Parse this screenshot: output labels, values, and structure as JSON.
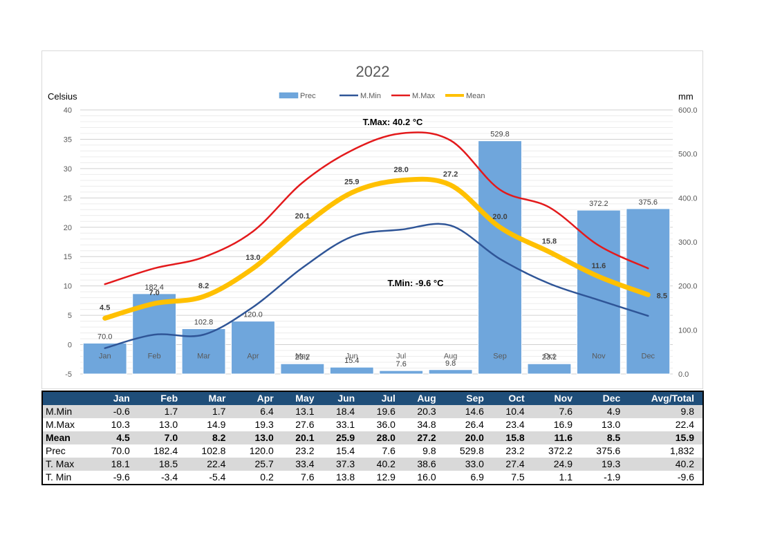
{
  "chart_data": {
    "type": "bar",
    "title": "2022",
    "y_left_label": "Celsius",
    "y_right_label": "mm",
    "y_left_range": [
      -5,
      40
    ],
    "y_left_ticks": [
      "-5",
      "0",
      "5",
      "10",
      "15",
      "20",
      "25",
      "30",
      "35",
      "40"
    ],
    "y_right_range": [
      0,
      600
    ],
    "y_right_ticks": [
      "0.0",
      "100.0",
      "200.0",
      "300.0",
      "400.0",
      "500.0",
      "600.0"
    ],
    "grid": true,
    "legend_position": "top",
    "categories": [
      "Jan",
      "Feb",
      "Mar",
      "Apr",
      "May",
      "Jun",
      "Jul",
      "Aug",
      "Sep",
      "Oct",
      "Nov",
      "Dec"
    ],
    "series": [
      {
        "name": "Prec",
        "type": "bar",
        "axis": "right",
        "color": "#6fa6dc",
        "values": [
          70.0,
          182.4,
          102.8,
          120.0,
          23.2,
          15.4,
          7.6,
          9.8,
          529.8,
          23.2,
          372.2,
          375.6
        ],
        "labels": [
          "70.0",
          "182.4",
          "102.8",
          "120.0",
          "23.2",
          "15.4",
          "7.6",
          "9.8",
          "529.8",
          "23.2",
          "372.2",
          "375.6"
        ]
      },
      {
        "name": "M.Min",
        "type": "line",
        "axis": "left",
        "color": "#2f5597",
        "values": [
          -0.6,
          1.7,
          1.7,
          6.4,
          13.1,
          18.4,
          19.6,
          20.3,
          14.6,
          10.4,
          7.6,
          4.9
        ]
      },
      {
        "name": "M.Max",
        "type": "line",
        "axis": "left",
        "color": "#e31a1c",
        "values": [
          10.3,
          13.0,
          14.9,
          19.3,
          27.6,
          33.1,
          36.0,
          34.8,
          26.4,
          23.4,
          16.9,
          13.0
        ]
      },
      {
        "name": "Mean",
        "type": "line",
        "axis": "left",
        "color": "#ffc000",
        "values": [
          4.5,
          7.0,
          8.2,
          13.0,
          20.1,
          25.9,
          28.0,
          27.2,
          20.0,
          15.8,
          11.6,
          8.5
        ],
        "labels": [
          "4.5",
          "7.0",
          "8.2",
          "13.0",
          "20.1",
          "25.9",
          "28.0",
          "27.2",
          "20.0",
          "15.8",
          "11.6",
          "8.5"
        ]
      }
    ],
    "annotations": [
      {
        "text": "T.Max: 40.2 °C",
        "position": "top-center"
      },
      {
        "text": "T.Min: -9.6 °C",
        "position": "center-right"
      }
    ]
  },
  "table": {
    "header": [
      "",
      "Jan",
      "Feb",
      "Mar",
      "Apr",
      "May",
      "Jun",
      "Jul",
      "Aug",
      "Sep",
      "Oct",
      "Nov",
      "Dec",
      "Avg/Total"
    ],
    "rows": [
      {
        "label": "M.Min",
        "values": [
          "-0.6",
          "1.7",
          "1.7",
          "6.4",
          "13.1",
          "18.4",
          "19.6",
          "20.3",
          "14.6",
          "10.4",
          "7.6",
          "4.9",
          "9.8"
        ],
        "shade": true,
        "bold": false
      },
      {
        "label": "M.Max",
        "values": [
          "10.3",
          "13.0",
          "14.9",
          "19.3",
          "27.6",
          "33.1",
          "36.0",
          "34.8",
          "26.4",
          "23.4",
          "16.9",
          "13.0",
          "22.4"
        ],
        "shade": false,
        "bold": false
      },
      {
        "label": "Mean",
        "values": [
          "4.5",
          "7.0",
          "8.2",
          "13.0",
          "20.1",
          "25.9",
          "28.0",
          "27.2",
          "20.0",
          "15.8",
          "11.6",
          "8.5",
          "15.9"
        ],
        "shade": true,
        "bold": true
      },
      {
        "label": "Prec",
        "values": [
          "70.0",
          "182.4",
          "102.8",
          "120.0",
          "23.2",
          "15.4",
          "7.6",
          "9.8",
          "529.8",
          "23.2",
          "372.2",
          "375.6",
          "1,832"
        ],
        "shade": false,
        "bold": false
      },
      {
        "label": "T. Max",
        "values": [
          "18.1",
          "18.5",
          "22.4",
          "25.7",
          "33.4",
          "37.3",
          "40.2",
          "38.6",
          "33.0",
          "27.4",
          "24.9",
          "19.3",
          "40.2"
        ],
        "shade": true,
        "bold": false
      },
      {
        "label": "T. Min",
        "values": [
          "-9.6",
          "-3.4",
          "-5.4",
          "0.2",
          "7.6",
          "13.8",
          "12.9",
          "16.0",
          "6.9",
          "7.5",
          "1.1",
          "-1.9",
          "-9.6"
        ],
        "shade": false,
        "bold": false
      }
    ]
  }
}
